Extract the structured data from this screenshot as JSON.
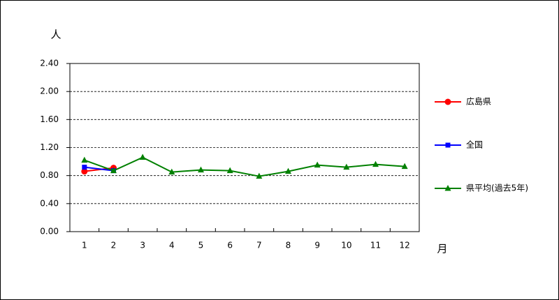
{
  "chart_data": {
    "type": "line",
    "y_label": "人",
    "x_label": "月",
    "categories": [
      "1",
      "2",
      "3",
      "4",
      "5",
      "6",
      "7",
      "8",
      "9",
      "10",
      "11",
      "12"
    ],
    "series": [
      {
        "name": "広島県",
        "color": "#ff0000",
        "marker": "circle",
        "values": [
          0.86,
          0.91,
          null,
          null,
          null,
          null,
          null,
          null,
          null,
          null,
          null,
          null
        ]
      },
      {
        "name": "全国",
        "color": "#0000ff",
        "marker": "square",
        "values": [
          0.92,
          0.87,
          null,
          null,
          null,
          null,
          null,
          null,
          null,
          null,
          null,
          null
        ]
      },
      {
        "name": "県平均(過去5年)",
        "color": "#008000",
        "marker": "triangle",
        "values": [
          1.02,
          0.87,
          1.06,
          0.85,
          0.88,
          0.87,
          0.79,
          0.86,
          0.95,
          0.92,
          0.96,
          0.93
        ]
      }
    ],
    "ylim": [
      0,
      2.4
    ],
    "yticks": [
      {
        "value": 0,
        "label": "0.00"
      },
      {
        "value": 0.4,
        "label": "0.40"
      },
      {
        "value": 0.8,
        "label": "0.80"
      },
      {
        "value": 1.2,
        "label": "1.20"
      },
      {
        "value": 1.6,
        "label": "1.60"
      },
      {
        "value": 2.0,
        "label": "2.00"
      },
      {
        "value": 2.4,
        "label": "2.40"
      }
    ],
    "grid": true,
    "legend": "right"
  }
}
